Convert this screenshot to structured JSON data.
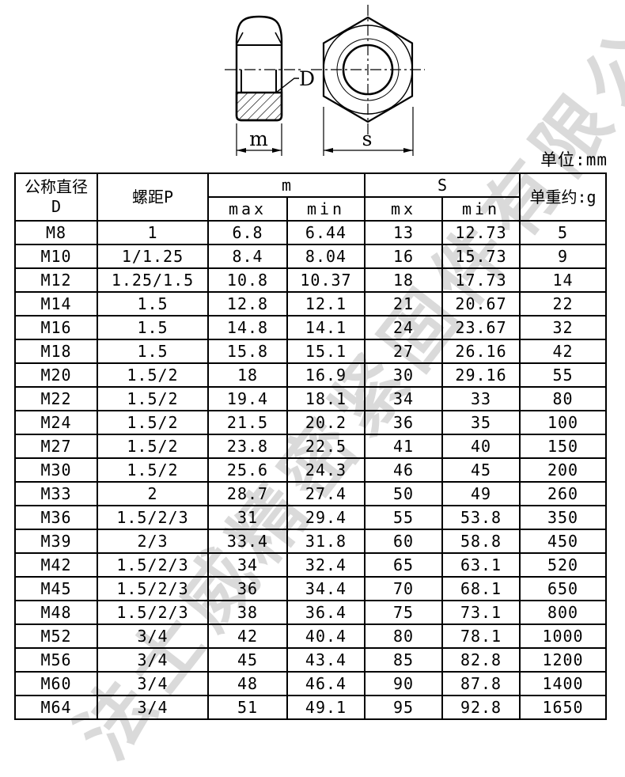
{
  "unit_label": "单位:mm",
  "watermark": "法士威精密紧固件有限公司",
  "drawing": {
    "label_d": "D",
    "label_m": "m",
    "label_s": "s"
  },
  "table": {
    "header": {
      "col_diameter_line1": "公称直径",
      "col_diameter_line2": "D",
      "col_pitch": "螺距P",
      "group_m": "m",
      "group_s": "S",
      "col_weight": "单重约:g",
      "sub_m_max": "max",
      "sub_m_min": "min",
      "sub_s_max": "mx",
      "sub_s_min": "min"
    },
    "rows": [
      [
        "M8",
        "1",
        "6.8",
        "6.44",
        "13",
        "12.73",
        "5"
      ],
      [
        "M10",
        "1/1.25",
        "8.4",
        "8.04",
        "16",
        "15.73",
        "9"
      ],
      [
        "M12",
        "1.25/1.5",
        "10.8",
        "10.37",
        "18",
        "17.73",
        "14"
      ],
      [
        "M14",
        "1.5",
        "12.8",
        "12.1",
        "21",
        "20.67",
        "22"
      ],
      [
        "M16",
        "1.5",
        "14.8",
        "14.1",
        "24",
        "23.67",
        "32"
      ],
      [
        "M18",
        "1.5",
        "15.8",
        "15.1",
        "27",
        "26.16",
        "42"
      ],
      [
        "M20",
        "1.5/2",
        "18",
        "16.9",
        "30",
        "29.16",
        "55"
      ],
      [
        "M22",
        "1.5/2",
        "19.4",
        "18.1",
        "34",
        "33",
        "80"
      ],
      [
        "M24",
        "1.5/2",
        "21.5",
        "20.2",
        "36",
        "35",
        "100"
      ],
      [
        "M27",
        "1.5/2",
        "23.8",
        "22.5",
        "41",
        "40",
        "150"
      ],
      [
        "M30",
        "1.5/2",
        "25.6",
        "24.3",
        "46",
        "45",
        "200"
      ],
      [
        "M33",
        "2",
        "28.7",
        "27.4",
        "50",
        "49",
        "260"
      ],
      [
        "M36",
        "1.5/2/3",
        "31",
        "29.4",
        "55",
        "53.8",
        "350"
      ],
      [
        "M39",
        "2/3",
        "33.4",
        "31.8",
        "60",
        "58.8",
        "450"
      ],
      [
        "M42",
        "1.5/2/3",
        "34",
        "32.4",
        "65",
        "63.1",
        "520"
      ],
      [
        "M45",
        "1.5/2/3",
        "36",
        "34.4",
        "70",
        "68.1",
        "650"
      ],
      [
        "M48",
        "1.5/2/3",
        "38",
        "36.4",
        "75",
        "73.1",
        "800"
      ],
      [
        "M52",
        "3/4",
        "42",
        "40.4",
        "80",
        "78.1",
        "1000"
      ],
      [
        "M56",
        "3/4",
        "45",
        "43.4",
        "85",
        "82.8",
        "1200"
      ],
      [
        "M60",
        "3/4",
        "48",
        "46.4",
        "90",
        "87.8",
        "1400"
      ],
      [
        "M64",
        "3/4",
        "51",
        "49.1",
        "95",
        "92.8",
        "1650"
      ]
    ]
  }
}
